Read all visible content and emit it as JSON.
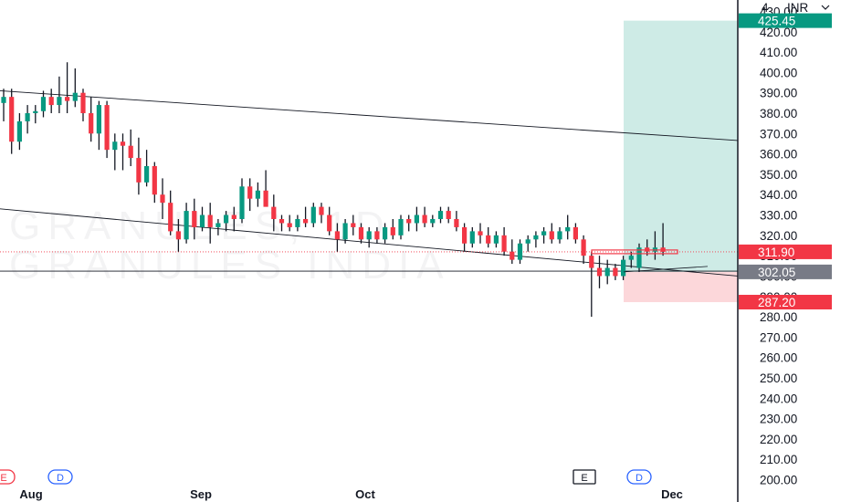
{
  "chart_data": {
    "type": "candlestick",
    "currency": "INR",
    "ylim": [
      198,
      432
    ],
    "y_ticks": [
      200,
      210,
      220,
      230,
      240,
      250,
      260,
      270,
      280,
      290,
      300,
      310,
      320,
      330,
      340,
      350,
      360,
      370,
      380,
      390,
      400,
      410,
      420,
      430
    ],
    "x_labels": [
      "Aug",
      "Sep",
      "Oct",
      "Dec"
    ],
    "price_badges": [
      {
        "name": "target",
        "value": 425.45,
        "label": "425.45",
        "color": "#089981"
      },
      {
        "name": "current",
        "value": 311.9,
        "label": "311.90",
        "color": "#f23645"
      },
      {
        "name": "entry",
        "value": 302.05,
        "label": "302.05",
        "color": "#787b86"
      },
      {
        "name": "stop",
        "value": 287.2,
        "label": "287.20",
        "color": "#f23645"
      }
    ],
    "watermark": [
      "GRANULES, 1D",
      "GRANULES INDIA"
    ],
    "event_markers": [
      "E",
      "D",
      "E",
      "D"
    ],
    "candles": [
      [
        385,
        392,
        376,
        388
      ],
      [
        388,
        392,
        360,
        366
      ],
      [
        366,
        380,
        362,
        376
      ],
      [
        376,
        384,
        370,
        380
      ],
      [
        380,
        384,
        375,
        381
      ],
      [
        381,
        391,
        378,
        388
      ],
      [
        388,
        392,
        380,
        384
      ],
      [
        384,
        398,
        380,
        388
      ],
      [
        388,
        405,
        380,
        386
      ],
      [
        386,
        402,
        383,
        390
      ],
      [
        390,
        392,
        376,
        380
      ],
      [
        380,
        388,
        366,
        370
      ],
      [
        370,
        386,
        362,
        384
      ],
      [
        384,
        386,
        358,
        362
      ],
      [
        362,
        370,
        352,
        366
      ],
      [
        366,
        370,
        352,
        364
      ],
      [
        364,
        372,
        354,
        358
      ],
      [
        358,
        368,
        340,
        346
      ],
      [
        346,
        362,
        344,
        354
      ],
      [
        354,
        356,
        336,
        340
      ],
      [
        340,
        348,
        328,
        336
      ],
      [
        336,
        342,
        320,
        322
      ],
      [
        322,
        328,
        312,
        318
      ],
      [
        318,
        336,
        316,
        332
      ],
      [
        332,
        338,
        318,
        324
      ],
      [
        324,
        334,
        322,
        330
      ],
      [
        330,
        336,
        316,
        324
      ],
      [
        324,
        328,
        320,
        326
      ],
      [
        326,
        332,
        322,
        330
      ],
      [
        330,
        334,
        322,
        328
      ],
      [
        328,
        348,
        326,
        344
      ],
      [
        344,
        348,
        332,
        338
      ],
      [
        338,
        346,
        334,
        342
      ],
      [
        342,
        352,
        336,
        334
      ],
      [
        334,
        340,
        322,
        328
      ],
      [
        328,
        330,
        322,
        326
      ],
      [
        326,
        330,
        322,
        324
      ],
      [
        324,
        330,
        322,
        328
      ],
      [
        328,
        334,
        324,
        326
      ],
      [
        326,
        336,
        324,
        334
      ],
      [
        334,
        336,
        326,
        330
      ],
      [
        330,
        334,
        320,
        322
      ],
      [
        322,
        326,
        312,
        318
      ],
      [
        318,
        328,
        316,
        326
      ],
      [
        326,
        330,
        320,
        324
      ],
      [
        324,
        326,
        316,
        318
      ],
      [
        318,
        324,
        314,
        322
      ],
      [
        322,
        324,
        316,
        318
      ],
      [
        318,
        326,
        316,
        324
      ],
      [
        324,
        328,
        318,
        320
      ],
      [
        320,
        330,
        318,
        328
      ],
      [
        328,
        330,
        322,
        326
      ],
      [
        326,
        334,
        322,
        330
      ],
      [
        330,
        334,
        324,
        326
      ],
      [
        326,
        330,
        324,
        328
      ],
      [
        328,
        334,
        326,
        332
      ],
      [
        332,
        334,
        326,
        328
      ],
      [
        328,
        332,
        322,
        324
      ],
      [
        324,
        326,
        312,
        316
      ],
      [
        316,
        324,
        314,
        322
      ],
      [
        322,
        326,
        316,
        320
      ],
      [
        320,
        324,
        314,
        316
      ],
      [
        316,
        322,
        314,
        320
      ],
      [
        320,
        324,
        310,
        312
      ],
      [
        312,
        318,
        306,
        308
      ],
      [
        308,
        318,
        306,
        316
      ],
      [
        316,
        320,
        312,
        318
      ],
      [
        318,
        322,
        314,
        320
      ],
      [
        320,
        324,
        316,
        322
      ],
      [
        322,
        326,
        316,
        318
      ],
      [
        318,
        324,
        316,
        322
      ],
      [
        322,
        330,
        318,
        324
      ],
      [
        324,
        326,
        316,
        318
      ],
      [
        318,
        320,
        306,
        310
      ],
      [
        310,
        312,
        280,
        304
      ],
      [
        304,
        310,
        294,
        300
      ],
      [
        300,
        308,
        296,
        304
      ],
      [
        304,
        306,
        298,
        300
      ],
      [
        300,
        310,
        298,
        308
      ],
      [
        308,
        312,
        304,
        310
      ],
      [
        304,
        316,
        302,
        314
      ],
      [
        314,
        318,
        310,
        312
      ],
      [
        312,
        322,
        308,
        314
      ],
      [
        314,
        326,
        310,
        311.9
      ]
    ],
    "trendlines": [
      {
        "from": [
          0,
          391
        ],
        "to": [
          "end",
          366.6
        ]
      },
      {
        "from": [
          0,
          333
        ],
        "to": [
          "end",
          300
        ]
      },
      {
        "from": [
          0,
          302.4
        ],
        "to": [
          "end",
          302.4
        ]
      }
    ]
  }
}
